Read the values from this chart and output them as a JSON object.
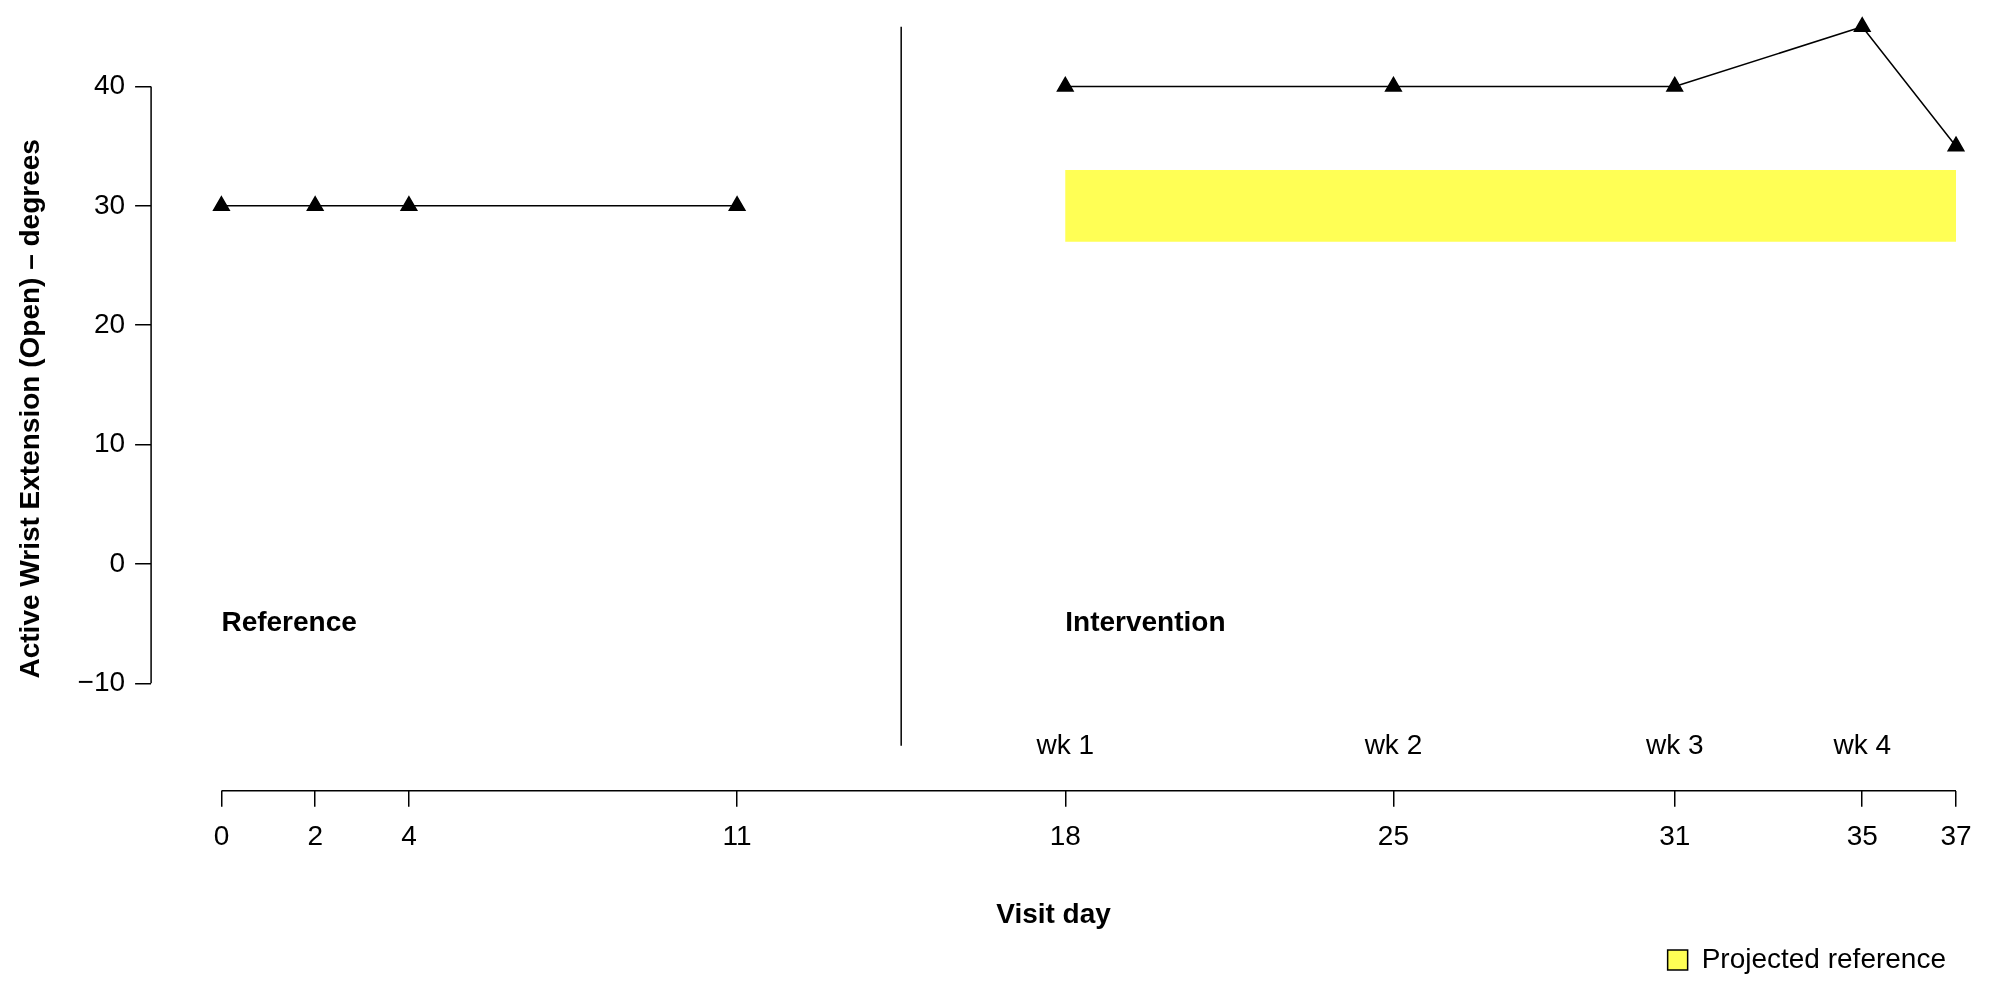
{
  "chart_data": {
    "type": "line",
    "xlabel": "Visit day",
    "ylabel": "Active Wrist Extension (Open) – degrees",
    "xlim": [
      -1.5,
      37
    ],
    "ylim": [
      -19,
      45
    ],
    "xticks": [
      0,
      2,
      4,
      11,
      18,
      25,
      31,
      35,
      37
    ],
    "yticks": [
      -10,
      0,
      10,
      20,
      30,
      40
    ],
    "marker": "triangle",
    "grid": false,
    "legend": "bottom right",
    "series": [
      {
        "color": "#000000",
        "x": [
          0,
          2,
          4,
          11
        ],
        "values": [
          30,
          30,
          30,
          30
        ]
      },
      {
        "color": "#000000",
        "x": [
          18,
          25,
          31,
          35,
          37
        ],
        "values": [
          40,
          40,
          40,
          45,
          35
        ]
      }
    ],
    "bands": [
      {
        "axis": "y",
        "from": 27,
        "to": 33,
        "label": "Projected reference",
        "color": "#ffff55"
      }
    ],
    "ref_lines": [
      {
        "axis": "x",
        "value": 14.5,
        "color": "#000000"
      }
    ],
    "annotations": [
      "Reference",
      "Intervention",
      "wk 1",
      "wk 2",
      "wk 3",
      "wk 4"
    ]
  }
}
